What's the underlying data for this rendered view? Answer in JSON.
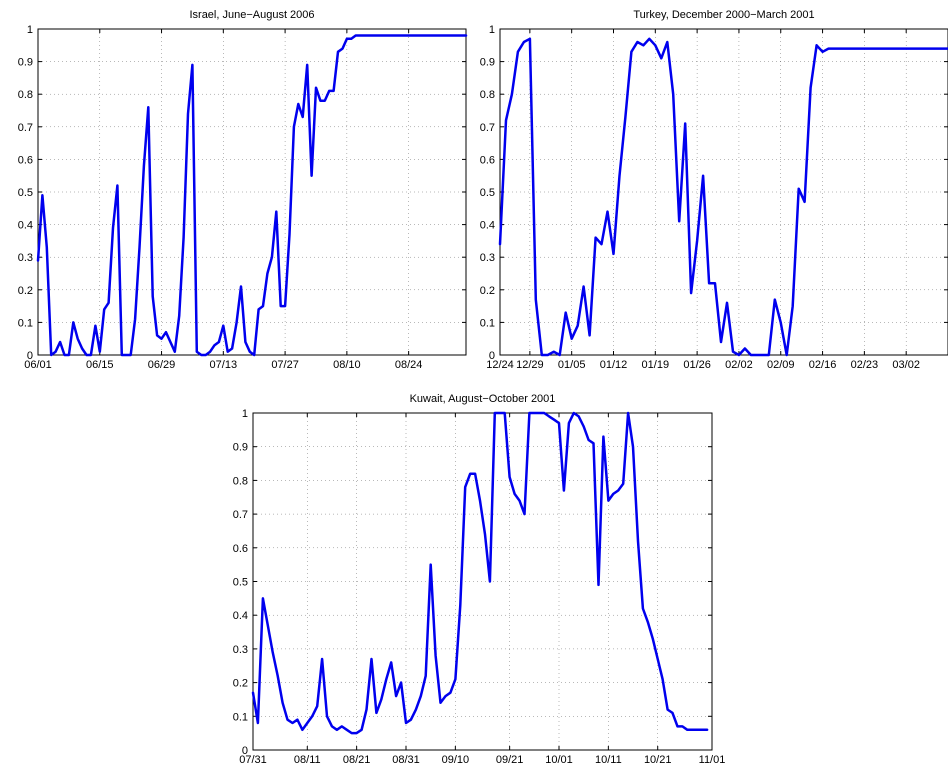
{
  "colors": {
    "series": "#0000ee",
    "axis": "#000000",
    "background": "#ffffff"
  },
  "chart_data": [
    {
      "type": "line",
      "title": "Israel, June−August 2006",
      "xlabel": "",
      "ylabel": "",
      "ylim": [
        0,
        1
      ],
      "xlim": [
        "2006-06-01",
        "2006-09-06"
      ],
      "x_ticks": [
        {
          "date": "2006-06-01",
          "label": "06/01"
        },
        {
          "date": "2006-06-15",
          "label": "06/15"
        },
        {
          "date": "2006-06-29",
          "label": "06/29"
        },
        {
          "date": "2006-07-13",
          "label": "07/13"
        },
        {
          "date": "2006-07-27",
          "label": "07/27"
        },
        {
          "date": "2006-08-10",
          "label": "08/10"
        },
        {
          "date": "2006-08-24",
          "label": "08/24"
        }
      ],
      "y_ticks": [
        0,
        0.1,
        0.2,
        0.3,
        0.4,
        0.5,
        0.6,
        0.7,
        0.8,
        0.9,
        1
      ],
      "y_tick_labels": [
        "0",
        "0.1",
        "0.2",
        "0.3",
        "0.4",
        "0.5",
        "0.6",
        "0.7",
        "0.8",
        "0.9",
        "1"
      ],
      "grid": true,
      "x": [
        "2006-06-01",
        "2006-06-02",
        "2006-06-03",
        "2006-06-04",
        "2006-06-05",
        "2006-06-06",
        "2006-06-07",
        "2006-06-08",
        "2006-06-09",
        "2006-06-10",
        "2006-06-11",
        "2006-06-12",
        "2006-06-13",
        "2006-06-14",
        "2006-06-15",
        "2006-06-16",
        "2006-06-17",
        "2006-06-18",
        "2006-06-19",
        "2006-06-20",
        "2006-06-21",
        "2006-06-22",
        "2006-06-23",
        "2006-06-24",
        "2006-06-25",
        "2006-06-26",
        "2006-06-27",
        "2006-06-28",
        "2006-06-29",
        "2006-06-30",
        "2006-07-01",
        "2006-07-02",
        "2006-07-03",
        "2006-07-04",
        "2006-07-05",
        "2006-07-06",
        "2006-07-07",
        "2006-07-08",
        "2006-07-09",
        "2006-07-10",
        "2006-07-11",
        "2006-07-12",
        "2006-07-13",
        "2006-07-14",
        "2006-07-15",
        "2006-07-16",
        "2006-07-17",
        "2006-07-18",
        "2006-07-19",
        "2006-07-20",
        "2006-07-21",
        "2006-07-22",
        "2006-07-23",
        "2006-07-24",
        "2006-07-25",
        "2006-07-26",
        "2006-07-27",
        "2006-07-28",
        "2006-07-29",
        "2006-07-30",
        "2006-07-31",
        "2006-08-01",
        "2006-08-02",
        "2006-08-03",
        "2006-08-04",
        "2006-08-05",
        "2006-08-06",
        "2006-08-07",
        "2006-08-08",
        "2006-08-09",
        "2006-08-10",
        "2006-08-11",
        "2006-08-12",
        "2006-08-13",
        "2006-08-14",
        "2006-08-15",
        "2006-08-16",
        "2006-08-17",
        "2006-08-18",
        "2006-08-19",
        "2006-08-20",
        "2006-08-21",
        "2006-08-22",
        "2006-08-23",
        "2006-08-24",
        "2006-08-25",
        "2006-08-26",
        "2006-08-27",
        "2006-08-28",
        "2006-08-29",
        "2006-08-30",
        "2006-08-31",
        "2006-09-01",
        "2006-09-02",
        "2006-09-03",
        "2006-09-04",
        "2006-09-05",
        "2006-09-06"
      ],
      "series": [
        {
          "values": [
            0.29,
            0.49,
            0.33,
            0.0,
            0.01,
            0.04,
            0.0,
            0.0,
            0.1,
            0.05,
            0.02,
            0.0,
            0.0,
            0.09,
            0.01,
            0.14,
            0.16,
            0.39,
            0.52,
            0.0,
            0.0,
            0.0,
            0.11,
            0.33,
            0.58,
            0.76,
            0.18,
            0.06,
            0.05,
            0.07,
            0.04,
            0.01,
            0.12,
            0.36,
            0.74,
            0.89,
            0.01,
            0.0,
            0.0,
            0.01,
            0.03,
            0.04,
            0.09,
            0.01,
            0.02,
            0.1,
            0.21,
            0.04,
            0.01,
            0.0,
            0.14,
            0.15,
            0.25,
            0.3,
            0.44,
            0.15,
            0.15,
            0.37,
            0.7,
            0.77,
            0.73,
            0.89,
            0.55,
            0.82,
            0.78,
            0.78,
            0.81,
            0.81,
            0.93,
            0.94,
            0.97,
            0.97,
            0.98,
            0.98,
            0.98,
            0.98,
            0.98,
            0.98,
            0.98,
            0.98,
            0.98,
            0.98,
            0.98,
            0.98,
            0.98,
            0.98,
            0.98,
            0.98,
            0.98,
            0.98,
            0.98,
            0.98,
            0.98,
            0.98,
            0.98,
            0.98,
            0.98,
            0.98
          ]
        }
      ]
    },
    {
      "type": "line",
      "title": "Turkey, December 2000−March 2001",
      "xlabel": "",
      "ylabel": "",
      "ylim": [
        0,
        1
      ],
      "xlim": [
        "2000-12-24",
        "2001-03-09"
      ],
      "x_ticks": [
        {
          "date": "2000-12-24",
          "label": "12/24"
        },
        {
          "date": "2000-12-29",
          "label": "12/29"
        },
        {
          "date": "2001-01-05",
          "label": "01/05"
        },
        {
          "date": "2001-01-12",
          "label": "01/12"
        },
        {
          "date": "2001-01-19",
          "label": "01/19"
        },
        {
          "date": "2001-01-26",
          "label": "01/26"
        },
        {
          "date": "2001-02-02",
          "label": "02/02"
        },
        {
          "date": "2001-02-09",
          "label": "02/09"
        },
        {
          "date": "2001-02-16",
          "label": "02/16"
        },
        {
          "date": "2001-02-23",
          "label": "02/23"
        },
        {
          "date": "2001-03-02",
          "label": "03/02"
        }
      ],
      "y_ticks": [
        0,
        0.1,
        0.2,
        0.3,
        0.4,
        0.5,
        0.6,
        0.7,
        0.8,
        0.9,
        1
      ],
      "y_tick_labels": [
        "0",
        "0.1",
        "0.2",
        "0.3",
        "0.4",
        "0.5",
        "0.6",
        "0.7",
        "0.8",
        "0.9",
        "1"
      ],
      "grid": true,
      "x": [
        "2000-12-24",
        "2000-12-25",
        "2000-12-26",
        "2000-12-27",
        "2000-12-28",
        "2000-12-29",
        "2000-12-30",
        "2000-12-31",
        "2001-01-01",
        "2001-01-02",
        "2001-01-03",
        "2001-01-04",
        "2001-01-05",
        "2001-01-06",
        "2001-01-07",
        "2001-01-08",
        "2001-01-09",
        "2001-01-10",
        "2001-01-11",
        "2001-01-12",
        "2001-01-13",
        "2001-01-14",
        "2001-01-15",
        "2001-01-16",
        "2001-01-17",
        "2001-01-18",
        "2001-01-19",
        "2001-01-20",
        "2001-01-21",
        "2001-01-22",
        "2001-01-23",
        "2001-01-24",
        "2001-01-25",
        "2001-01-26",
        "2001-01-27",
        "2001-01-28",
        "2001-01-29",
        "2001-01-30",
        "2001-01-31",
        "2001-02-01",
        "2001-02-02",
        "2001-02-03",
        "2001-02-04",
        "2001-02-05",
        "2001-02-06",
        "2001-02-07",
        "2001-02-08",
        "2001-02-09",
        "2001-02-10",
        "2001-02-11",
        "2001-02-12",
        "2001-02-13",
        "2001-02-14",
        "2001-02-15",
        "2001-02-16",
        "2001-02-17",
        "2001-02-18",
        "2001-02-19",
        "2001-02-20",
        "2001-02-21",
        "2001-02-22",
        "2001-02-23",
        "2001-02-24",
        "2001-02-25",
        "2001-02-26",
        "2001-02-27",
        "2001-02-28",
        "2001-03-01",
        "2001-03-02",
        "2001-03-03",
        "2001-03-04",
        "2001-03-05",
        "2001-03-06",
        "2001-03-07",
        "2001-03-08",
        "2001-03-09"
      ],
      "series": [
        {
          "values": [
            0.34,
            0.72,
            0.8,
            0.93,
            0.96,
            0.97,
            0.17,
            0.0,
            0.0,
            0.01,
            0.0,
            0.13,
            0.05,
            0.09,
            0.21,
            0.06,
            0.36,
            0.34,
            0.44,
            0.31,
            0.55,
            0.73,
            0.93,
            0.96,
            0.95,
            0.97,
            0.95,
            0.91,
            0.96,
            0.8,
            0.41,
            0.71,
            0.19,
            0.35,
            0.55,
            0.22,
            0.22,
            0.04,
            0.16,
            0.01,
            0.0,
            0.02,
            0.0,
            0.0,
            0.0,
            0.0,
            0.17,
            0.1,
            0.0,
            0.15,
            0.51,
            0.47,
            0.82,
            0.95,
            0.93,
            0.94,
            0.94,
            0.94,
            0.94,
            0.94,
            0.94,
            0.94,
            0.94,
            0.94,
            0.94,
            0.94,
            0.94,
            0.94,
            0.94,
            0.94,
            0.94,
            0.94,
            0.94,
            0.94,
            0.94,
            0.94
          ]
        }
      ]
    },
    {
      "type": "line",
      "title": "Kuwait, August−October 2001",
      "xlabel": "",
      "ylabel": "",
      "ylim": [
        0,
        1
      ],
      "xlim": [
        "2001-07-31",
        "2001-11-01"
      ],
      "x_ticks": [
        {
          "date": "2001-07-31",
          "label": "07/31"
        },
        {
          "date": "2001-08-11",
          "label": "08/11"
        },
        {
          "date": "2001-08-21",
          "label": "08/21"
        },
        {
          "date": "2001-08-31",
          "label": "08/31"
        },
        {
          "date": "2001-09-10",
          "label": "09/10"
        },
        {
          "date": "2001-09-21",
          "label": "09/21"
        },
        {
          "date": "2001-10-01",
          "label": "10/01"
        },
        {
          "date": "2001-10-11",
          "label": "10/11"
        },
        {
          "date": "2001-10-21",
          "label": "10/21"
        },
        {
          "date": "2001-11-01",
          "label": "11/01"
        }
      ],
      "y_ticks": [
        0,
        0.1,
        0.2,
        0.3,
        0.4,
        0.5,
        0.6,
        0.7,
        0.8,
        0.9,
        1
      ],
      "y_tick_labels": [
        "0",
        "0.1",
        "0.2",
        "0.3",
        "0.4",
        "0.5",
        "0.6",
        "0.7",
        "0.8",
        "0.9",
        "1"
      ],
      "grid": true,
      "x": [
        "2001-07-31",
        "2001-08-01",
        "2001-08-02",
        "2001-08-03",
        "2001-08-04",
        "2001-08-05",
        "2001-08-06",
        "2001-08-07",
        "2001-08-08",
        "2001-08-09",
        "2001-08-10",
        "2001-08-11",
        "2001-08-12",
        "2001-08-13",
        "2001-08-14",
        "2001-08-15",
        "2001-08-16",
        "2001-08-17",
        "2001-08-18",
        "2001-08-19",
        "2001-08-20",
        "2001-08-21",
        "2001-08-22",
        "2001-08-23",
        "2001-08-24",
        "2001-08-25",
        "2001-08-26",
        "2001-08-27",
        "2001-08-28",
        "2001-08-29",
        "2001-08-30",
        "2001-08-31",
        "2001-09-01",
        "2001-09-02",
        "2001-09-03",
        "2001-09-04",
        "2001-09-05",
        "2001-09-06",
        "2001-09-07",
        "2001-09-08",
        "2001-09-09",
        "2001-09-10",
        "2001-09-11",
        "2001-09-12",
        "2001-09-13",
        "2001-09-14",
        "2001-09-15",
        "2001-09-16",
        "2001-09-17",
        "2001-09-18",
        "2001-09-19",
        "2001-09-20",
        "2001-09-21",
        "2001-09-22",
        "2001-09-23",
        "2001-09-24",
        "2001-09-25",
        "2001-09-26",
        "2001-09-27",
        "2001-09-28",
        "2001-09-29",
        "2001-09-30",
        "2001-10-01",
        "2001-10-02",
        "2001-10-03",
        "2001-10-04",
        "2001-10-05",
        "2001-10-06",
        "2001-10-07",
        "2001-10-08",
        "2001-10-09",
        "2001-10-10",
        "2001-10-11",
        "2001-10-12",
        "2001-10-13",
        "2001-10-14",
        "2001-10-15",
        "2001-10-16",
        "2001-10-17",
        "2001-10-18",
        "2001-10-19",
        "2001-10-20",
        "2001-10-21",
        "2001-10-22",
        "2001-10-23",
        "2001-10-24",
        "2001-10-25",
        "2001-10-26",
        "2001-10-27",
        "2001-10-28",
        "2001-10-29",
        "2001-10-30",
        "2001-10-31"
      ],
      "series": [
        {
          "values": [
            0.17,
            0.08,
            0.45,
            0.37,
            0.29,
            0.22,
            0.14,
            0.09,
            0.08,
            0.09,
            0.06,
            0.08,
            0.1,
            0.13,
            0.27,
            0.1,
            0.07,
            0.06,
            0.07,
            0.06,
            0.05,
            0.05,
            0.06,
            0.12,
            0.27,
            0.11,
            0.15,
            0.21,
            0.26,
            0.16,
            0.2,
            0.08,
            0.09,
            0.12,
            0.16,
            0.22,
            0.55,
            0.28,
            0.14,
            0.16,
            0.17,
            0.21,
            0.43,
            0.78,
            0.82,
            0.82,
            0.74,
            0.64,
            0.5,
            1.0,
            1.0,
            1.0,
            0.81,
            0.76,
            0.74,
            0.7,
            1.0,
            1.0,
            1.0,
            1.0,
            0.99,
            0.98,
            0.97,
            0.77,
            0.97,
            1.0,
            0.99,
            0.96,
            0.92,
            0.91,
            0.49,
            0.93,
            0.74,
            0.76,
            0.77,
            0.79,
            1.0,
            0.9,
            0.62,
            0.42,
            0.38,
            0.33,
            0.27,
            0.21,
            0.12,
            0.11,
            0.07,
            0.07,
            0.06,
            0.06,
            0.06,
            0.06,
            0.06
          ]
        }
      ]
    }
  ]
}
